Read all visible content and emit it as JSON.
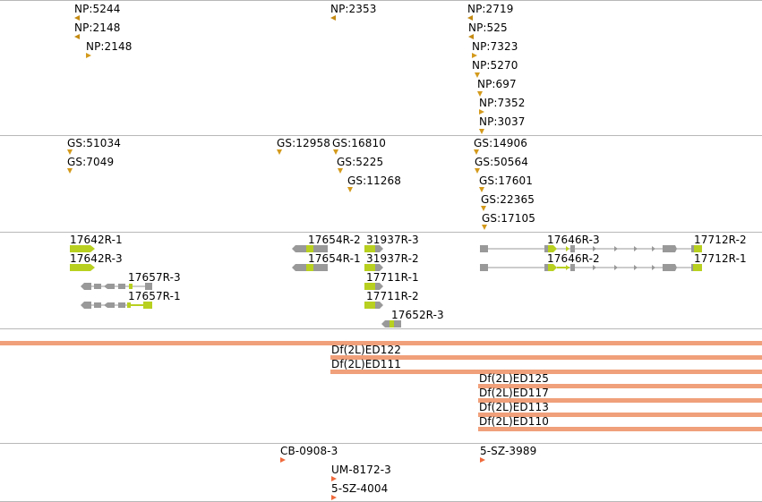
{
  "colors": {
    "track_border": "#b8b8b8",
    "np_marker": "#c48a12",
    "gs_marker": "#d49a1c",
    "exon_gray": "#999999",
    "exon_coding": "#b8d020",
    "deletion_bar": "#f0a07a",
    "insertion_marker": "#f06a3c"
  },
  "tracks": {
    "np": {
      "features": [
        {
          "label": "NP:5244"
        },
        {
          "label": "NP:2148"
        },
        {
          "label": "NP:2148"
        },
        {
          "label": "NP:2353"
        },
        {
          "label": "NP:2719"
        },
        {
          "label": "NP:525"
        },
        {
          "label": "NP:7323"
        },
        {
          "label": "NP:5270"
        },
        {
          "label": "NP:697"
        },
        {
          "label": "NP:7352"
        },
        {
          "label": "NP:3037"
        }
      ]
    },
    "gs": {
      "features": [
        {
          "label": "GS:51034"
        },
        {
          "label": "GS:7049"
        },
        {
          "label": "GS:12958"
        },
        {
          "label": "GS:16810"
        },
        {
          "label": "GS:5225"
        },
        {
          "label": "GS:11268"
        },
        {
          "label": "GS:14906"
        },
        {
          "label": "GS:50564"
        },
        {
          "label": "GS:17601"
        },
        {
          "label": "GS:22365"
        },
        {
          "label": "GS:17105"
        }
      ]
    },
    "transcripts": {
      "features": [
        {
          "label": "17642R-1"
        },
        {
          "label": "17642R-3"
        },
        {
          "label": "17657R-3"
        },
        {
          "label": "17657R-1"
        },
        {
          "label": "17654R-2"
        },
        {
          "label": "17654R-1"
        },
        {
          "label": "31937R-3"
        },
        {
          "label": "31937R-2"
        },
        {
          "label": "17711R-1"
        },
        {
          "label": "17711R-2"
        },
        {
          "label": "17652R-3"
        },
        {
          "label": "17646R-3"
        },
        {
          "label": "17646R-2"
        },
        {
          "label": "17712R-2"
        },
        {
          "label": "17712R-1"
        }
      ]
    },
    "deletions": {
      "features": [
        {
          "label": ""
        },
        {
          "label": "Df(2L)ED122"
        },
        {
          "label": "Df(2L)ED111"
        },
        {
          "label": "Df(2L)ED125"
        },
        {
          "label": "Df(2L)ED117"
        },
        {
          "label": "Df(2L)ED113"
        },
        {
          "label": "Df(2L)ED110"
        }
      ]
    },
    "insertions": {
      "features": [
        {
          "label": "CB-0908-3"
        },
        {
          "label": "UM-8172-3"
        },
        {
          "label": "5-SZ-4004"
        },
        {
          "label": "5-SZ-3989"
        }
      ]
    }
  }
}
